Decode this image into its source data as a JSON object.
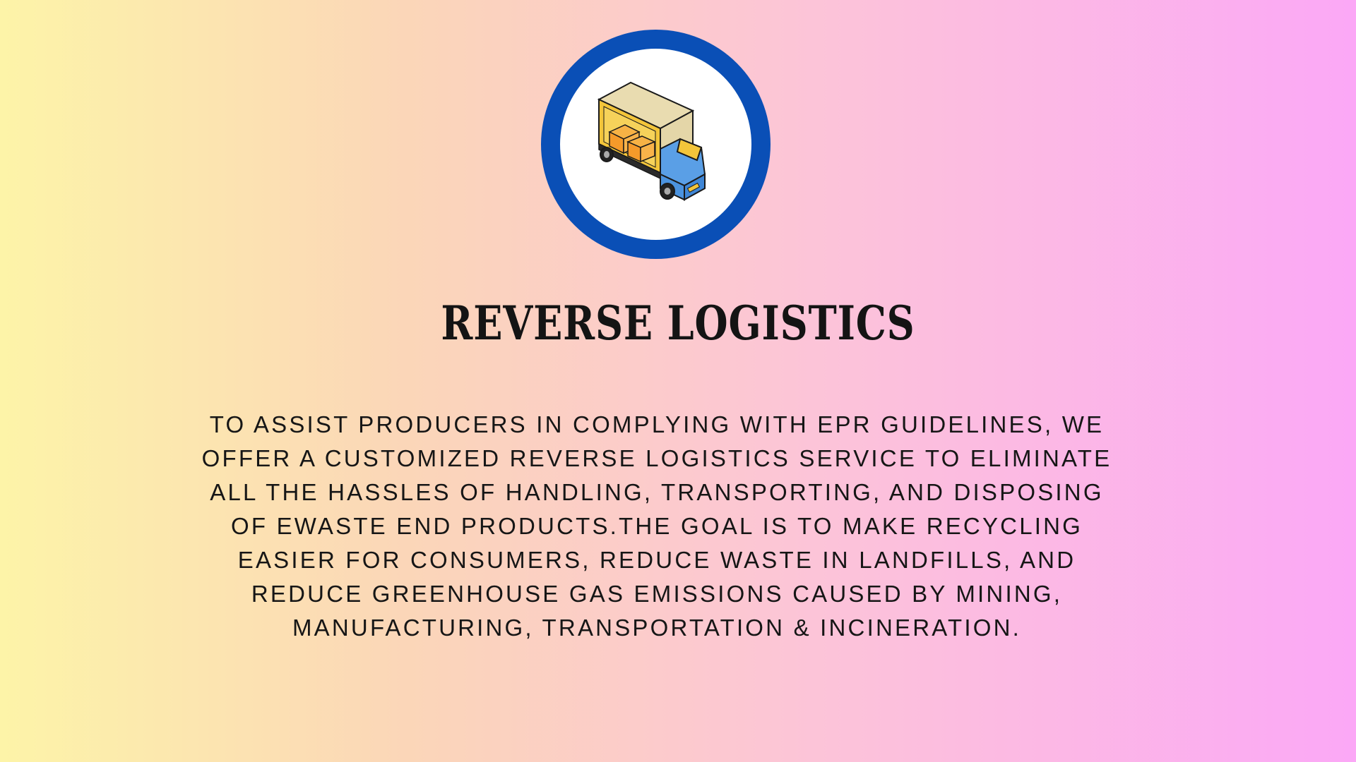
{
  "slide": {
    "title": "REVERSE LOGISTICS",
    "body": "TO ASSIST PRODUCERS IN COMPLYING WITH EPR GUIDELINES, WE OFFER A CUSTOMIZED REVERSE LOGISTICS SERVICE TO ELIMINATE ALL THE HASSLES OF HANDLING, TRANSPORTING, AND DISPOSING OF EWASTE END PRODUCTS.THE GOAL IS TO MAKE RECYCLING EASIER FOR CONSUMERS, REDUCE WASTE IN LANDFILLS, AND REDUCE GREENHOUSE GAS EMISSIONS CAUSED BY MINING, MANUFACTURING, TRANSPORTATION & INCINERATION."
  },
  "icon": {
    "name": "delivery-truck-icon",
    "ring_color": "#0a4fb6"
  },
  "colors": {
    "background_left": "#fdf4a8",
    "background_right": "#fba8f6",
    "text": "#141414"
  }
}
